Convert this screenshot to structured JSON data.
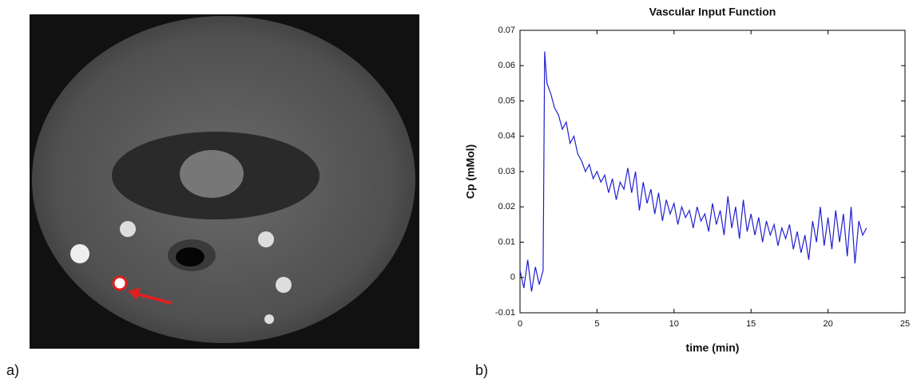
{
  "panel_labels": [
    "a)",
    "b)"
  ],
  "chart_data": {
    "type": "line",
    "title": "Vascular Input Function",
    "x_label": "time (min)",
    "y_label": "Cp (mMol)",
    "xlim": [
      0,
      25
    ],
    "xticks": [
      0,
      5,
      10,
      15,
      20,
      25
    ],
    "ylim": [
      -0.01,
      0.07
    ],
    "yticks": [
      -0.01,
      0,
      0.01,
      0.02,
      0.03,
      0.04,
      0.05,
      0.06,
      0.07
    ],
    "series": [
      {
        "color": "#1f1fd0",
        "x": [
          0,
          0.25,
          0.5,
          0.75,
          1.0,
          1.25,
          1.5,
          1.6,
          1.75,
          2.0,
          2.25,
          2.5,
          2.75,
          3.0,
          3.25,
          3.5,
          3.75,
          4.0,
          4.25,
          4.5,
          4.75,
          5.0,
          5.25,
          5.5,
          5.75,
          6.0,
          6.25,
          6.5,
          6.75,
          7.0,
          7.25,
          7.5,
          7.75,
          8.0,
          8.25,
          8.5,
          8.75,
          9.0,
          9.25,
          9.5,
          9.75,
          10.0,
          10.25,
          10.5,
          10.75,
          11.0,
          11.25,
          11.5,
          11.75,
          12.0,
          12.25,
          12.5,
          12.75,
          13.0,
          13.25,
          13.5,
          13.75,
          14.0,
          14.25,
          14.5,
          14.75,
          15.0,
          15.25,
          15.5,
          15.75,
          16.0,
          16.25,
          16.5,
          16.75,
          17.0,
          17.25,
          17.5,
          17.75,
          18.0,
          18.25,
          18.5,
          18.75,
          19.0,
          19.25,
          19.5,
          19.75,
          20.0,
          20.25,
          20.5,
          20.75,
          21.0,
          21.25,
          21.5,
          21.75,
          22.0,
          22.25,
          22.5
        ],
        "values": [
          0.002,
          -0.003,
          0.005,
          -0.004,
          0.003,
          -0.002,
          0.002,
          0.064,
          0.055,
          0.052,
          0.048,
          0.046,
          0.042,
          0.044,
          0.038,
          0.04,
          0.035,
          0.033,
          0.03,
          0.032,
          0.028,
          0.03,
          0.027,
          0.029,
          0.024,
          0.028,
          0.022,
          0.027,
          0.025,
          0.031,
          0.024,
          0.03,
          0.019,
          0.027,
          0.021,
          0.025,
          0.018,
          0.024,
          0.016,
          0.022,
          0.018,
          0.021,
          0.015,
          0.02,
          0.017,
          0.019,
          0.014,
          0.02,
          0.016,
          0.018,
          0.013,
          0.021,
          0.015,
          0.019,
          0.012,
          0.023,
          0.014,
          0.02,
          0.011,
          0.022,
          0.013,
          0.018,
          0.012,
          0.017,
          0.01,
          0.016,
          0.012,
          0.015,
          0.009,
          0.014,
          0.011,
          0.015,
          0.008,
          0.013,
          0.007,
          0.012,
          0.005,
          0.016,
          0.01,
          0.02,
          0.009,
          0.017,
          0.008,
          0.019,
          0.01,
          0.018,
          0.006,
          0.02,
          0.004,
          0.016,
          0.012,
          0.014
        ]
      }
    ]
  }
}
